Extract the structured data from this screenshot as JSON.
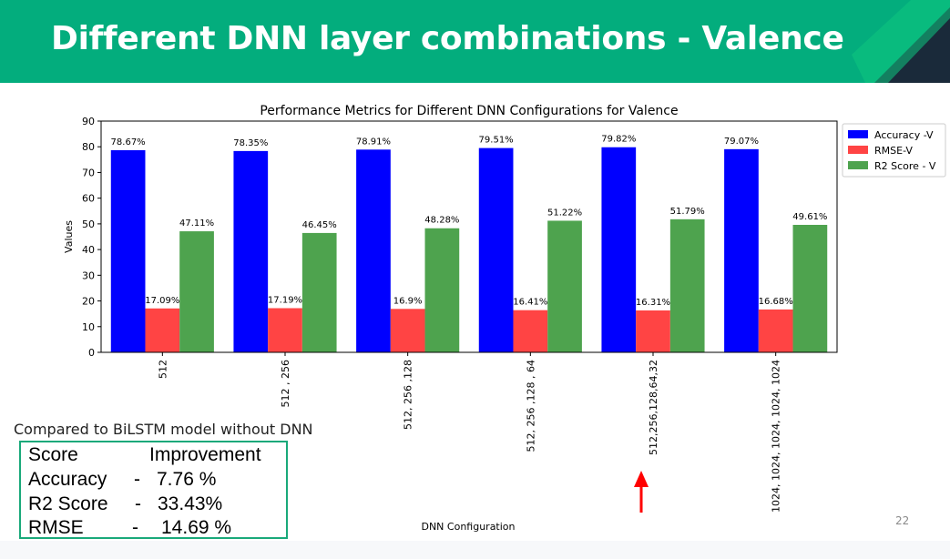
{
  "slide": {
    "title": "Different DNN layer combinations - Valence",
    "page_number": "22",
    "comparison_caption": "Compared to BiLSTM model without DNN",
    "improvement_table": {
      "header": [
        "Score",
        "Improvement"
      ],
      "rows": [
        [
          "Accuracy",
          "-",
          "7.76 %"
        ],
        [
          "R2 Score",
          "-",
          "33.43%"
        ],
        [
          "RMSE",
          "-",
          "14.69 %"
        ]
      ]
    },
    "colors": {
      "header": "#03ad7d",
      "box_border": "#19a97a",
      "arrow": "#ff0000"
    },
    "decorations": [
      "red-up-arrow"
    ]
  },
  "chart_data": {
    "type": "bar",
    "title": "Performance Metrics for Different DNN Configurations for Valence",
    "xlabel": "DNN Configuration",
    "ylabel": "Values",
    "ylim": [
      0,
      90
    ],
    "yticks": [
      0,
      10,
      20,
      30,
      40,
      50,
      60,
      70,
      80,
      90
    ],
    "grid": false,
    "legend_position": "outside top-right",
    "categories": [
      "512",
      "512 ,  256",
      "512, 256 ,128",
      "512, 256 ,128 , 64",
      "512,256,128,64,32",
      "1024, 1024, 1024, 1024, 1024"
    ],
    "series": [
      {
        "name": "Accuracy -V",
        "color": "#0000ff",
        "values": [
          78.67,
          78.35,
          78.91,
          79.51,
          79.82,
          79.07
        ],
        "labels": [
          "78.67%",
          "78.35%",
          "78.91%",
          "79.51%",
          "79.82%",
          "79.07%"
        ]
      },
      {
        "name": "RMSE-V",
        "color": "#ff4444",
        "values": [
          17.09,
          17.19,
          16.9,
          16.41,
          16.31,
          16.68
        ],
        "labels": [
          "17.09%",
          "17.19%",
          "16.9%",
          "16.41%",
          "16.31%",
          "16.68%"
        ]
      },
      {
        "name": "R2 Score - V",
        "color": "#4ea34e",
        "values": [
          47.11,
          46.45,
          48.28,
          51.22,
          51.79,
          49.61
        ],
        "labels": [
          "47.11%",
          "46.45%",
          "48.28%",
          "51.22%",
          "51.79%",
          "49.61%"
        ]
      }
    ]
  }
}
